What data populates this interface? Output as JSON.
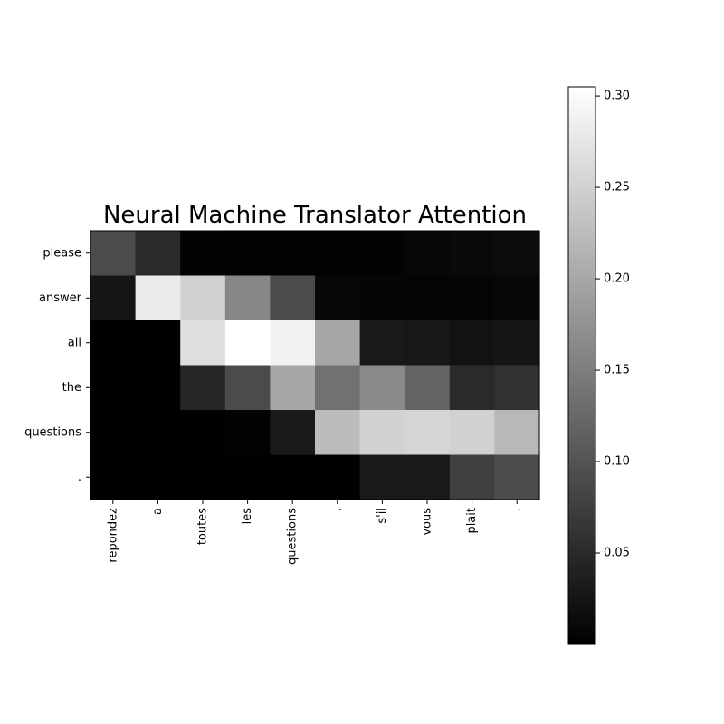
{
  "chart_data": {
    "type": "heatmap",
    "title": "Neural Machine Translator Attention",
    "x_tick_labels": [
      "repondez",
      "a",
      "toutes",
      "les",
      "questions",
      ",",
      "s'il",
      "vous",
      "plait",
      "."
    ],
    "y_tick_labels": [
      "please",
      "answer",
      "all",
      "the",
      "questions",
      "."
    ],
    "values": [
      [
        0.09,
        0.05,
        0.003,
        0.002,
        0.002,
        0.002,
        0.004,
        0.008,
        0.012,
        0.015
      ],
      [
        0.025,
        0.28,
        0.25,
        0.16,
        0.09,
        0.01,
        0.006,
        0.006,
        0.005,
        0.008
      ],
      [
        0.001,
        0.001,
        0.265,
        0.305,
        0.29,
        0.2,
        0.03,
        0.028,
        0.022,
        0.025
      ],
      [
        0.001,
        0.001,
        0.045,
        0.09,
        0.2,
        0.135,
        0.165,
        0.12,
        0.05,
        0.06
      ],
      [
        0.001,
        0.001,
        0.001,
        0.002,
        0.03,
        0.225,
        0.25,
        0.255,
        0.25,
        0.22
      ],
      [
        0.001,
        0.001,
        0.001,
        0.001,
        0.001,
        0.001,
        0.03,
        0.03,
        0.075,
        0.09
      ]
    ],
    "colormap": "gray",
    "colorbar": {
      "min": 0.0,
      "max": 0.305,
      "ticks": [
        0.05,
        0.1,
        0.15,
        0.2,
        0.25,
        0.3
      ],
      "tick_labels": [
        "0.05",
        "0.10",
        "0.15",
        "0.20",
        "0.25",
        "0.30"
      ]
    },
    "grid": false,
    "legend": "none"
  }
}
